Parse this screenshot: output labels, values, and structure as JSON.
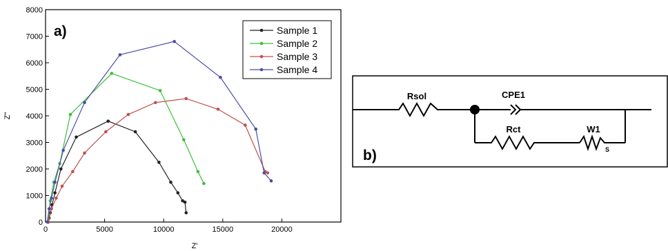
{
  "chart_data": {
    "type": "scatter",
    "panel_label": "a)",
    "xlabel": "Z'",
    "ylabel": "Z\"",
    "xlim": [
      0,
      25000
    ],
    "ylim": [
      0,
      8000
    ],
    "x_ticks": [
      0,
      5000,
      10000,
      15000,
      20000
    ],
    "y_ticks": [
      0,
      1000,
      2000,
      3000,
      4000,
      5000,
      6000,
      7000,
      8000
    ],
    "legend_position": "top-right",
    "series": [
      {
        "name": "Sample 1",
        "color": "#222222",
        "x": [
          230,
          300,
          400,
          550,
          800,
          1300,
          2600,
          5300,
          7600,
          9600,
          10600,
          11200,
          11600,
          11800,
          11900
        ],
        "y": [
          0,
          150,
          350,
          650,
          1100,
          2000,
          3200,
          3800,
          3400,
          2250,
          1500,
          1100,
          800,
          750,
          350
        ]
      },
      {
        "name": "Sample 2",
        "color": "#3cbf3c",
        "x": [
          200,
          400,
          700,
          1200,
          2100,
          5600,
          9700,
          11700,
          12900,
          13400
        ],
        "y": [
          0,
          800,
          1500,
          2200,
          4050,
          5600,
          4950,
          3100,
          1900,
          1450
        ]
      },
      {
        "name": "Sample 3",
        "color": "#c0504d",
        "x": [
          250,
          500,
          900,
          1400,
          2300,
          3300,
          5100,
          7000,
          9300,
          11900,
          14600,
          16900,
          18600,
          18800
        ],
        "y": [
          0,
          500,
          900,
          1350,
          1900,
          2600,
          3400,
          4050,
          4500,
          4650,
          4250,
          3650,
          1900,
          1850
        ]
      },
      {
        "name": "Sample 4",
        "color": "#4b4ba8",
        "x": [
          150,
          300,
          500,
          800,
          1500,
          3300,
          6300,
          10900,
          14800,
          17800,
          18500,
          19100
        ],
        "y": [
          0,
          500,
          900,
          1500,
          2700,
          4500,
          6300,
          6800,
          5450,
          3500,
          1850,
          1550
        ]
      }
    ]
  },
  "circuit": {
    "panel_label": "b)",
    "labels": {
      "rsol": "Rsol",
      "cpe": "CPE1",
      "rct": "Rct",
      "w": "W1",
      "w_sub": "S"
    }
  }
}
